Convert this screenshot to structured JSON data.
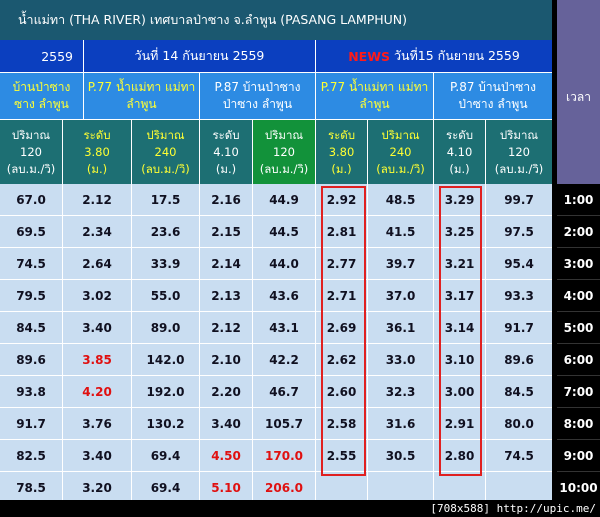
{
  "title": "น้ำแม่ทา (THA RIVER) เทศบาลป่าซาง จ.ลำพูน (PASANG LAMPHUN)",
  "time_header": "เวลา",
  "dates": {
    "prev_partial": "2559",
    "day14": "วันที่ 14 กันยายน 2559",
    "news_label": "NEWS",
    "day15": "วันที่15 กันยายน 2559"
  },
  "stations": {
    "partial_line1": "บ้านป่าซาง",
    "partial_line2": "ซาง ลำพูน",
    "p77_line1": "P.77 น้ำแม่ทา แม่ทา",
    "p77_line2": "ลำพูน",
    "p87_line1": "P.87 บ้านป่าซาง",
    "p87_line2": "ป่าซาง ลำพูน"
  },
  "col_headers": [
    [
      "ปริมาณ",
      "120",
      "(ลบ.ม./วิ)"
    ],
    [
      "ระดับ",
      "3.80",
      "(ม.)"
    ],
    [
      "ปริมาณ",
      "240",
      "(ลบ.ม./วิ)"
    ],
    [
      "ระดับ",
      "4.10",
      "(ม.)"
    ],
    [
      "ปริมาณ",
      "120",
      "(ลบ.ม./วิ)"
    ],
    [
      "ระดับ",
      "3.80",
      "(ม.)"
    ],
    [
      "ปริมาณ",
      "240",
      "(ลบ.ม./วิ)"
    ],
    [
      "ระดับ",
      "4.10",
      "(ม.)"
    ],
    [
      "ปริมาณ",
      "120",
      "(ลบ.ม./วิ)"
    ]
  ],
  "rows": [
    {
      "time": "1:00",
      "values": [
        "67.0",
        "2.12",
        "17.5",
        "2.16",
        "44.9",
        "2.92",
        "48.5",
        "3.29",
        "99.7"
      ]
    },
    {
      "time": "2:00",
      "values": [
        "69.5",
        "2.34",
        "23.6",
        "2.15",
        "44.5",
        "2.81",
        "41.5",
        "3.25",
        "97.5"
      ]
    },
    {
      "time": "3:00",
      "values": [
        "74.5",
        "2.64",
        "33.9",
        "2.14",
        "44.0",
        "2.77",
        "39.7",
        "3.21",
        "95.4"
      ]
    },
    {
      "time": "4:00",
      "values": [
        "79.5",
        "3.02",
        "55.0",
        "2.13",
        "43.6",
        "2.71",
        "37.0",
        "3.17",
        "93.3"
      ]
    },
    {
      "time": "5:00",
      "values": [
        "84.5",
        "3.40",
        "89.0",
        "2.12",
        "43.1",
        "2.69",
        "36.1",
        "3.14",
        "91.7"
      ]
    },
    {
      "time": "6:00",
      "values": [
        "89.6",
        "3.85",
        "142.0",
        "2.10",
        "42.2",
        "2.62",
        "33.0",
        "3.10",
        "89.6"
      ]
    },
    {
      "time": "7:00",
      "values": [
        "93.8",
        "4.20",
        "192.0",
        "2.20",
        "46.7",
        "2.60",
        "32.3",
        "3.00",
        "84.5"
      ]
    },
    {
      "time": "8:00",
      "values": [
        "91.7",
        "3.76",
        "130.2",
        "3.40",
        "105.7",
        "2.58",
        "31.6",
        "2.91",
        "80.0"
      ]
    },
    {
      "time": "9:00",
      "values": [
        "82.5",
        "3.40",
        "69.4",
        "4.50",
        "170.0",
        "2.55",
        "30.5",
        "2.80",
        "74.5"
      ]
    },
    {
      "time": "10:00",
      "values": [
        "78.5",
        "3.20",
        "69.4",
        "5.10",
        "206.0",
        "",
        "",
        "",
        ""
      ]
    }
  ],
  "red_cells": [
    "5-1",
    "6-1",
    "8-3",
    "8-4",
    "9-3",
    "9-4"
  ],
  "colors": {
    "title_bg": "#1b5870",
    "date_bg": "#0b3fbf",
    "station_bg": "#2d8be3",
    "header_teal": "#1d6f73",
    "header_green": "#12923a",
    "cell_bg": "#c9ddf1",
    "alert_red": "#e01010",
    "time_header_bg": "#66629a"
  },
  "watermark": "[708x588] http://upic.me/"
}
